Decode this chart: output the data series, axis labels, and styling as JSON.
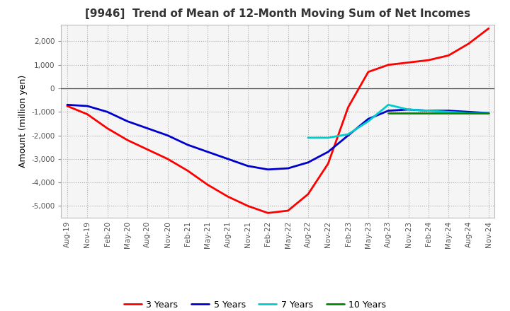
{
  "title": "[9946]  Trend of Mean of 12-Month Moving Sum of Net Incomes",
  "ylabel": "Amount (million yen)",
  "background_color": "#ffffff",
  "plot_bg_color": "#f5f5f5",
  "ylim": [
    -5500,
    2700
  ],
  "yticks": [
    -5000,
    -4000,
    -3000,
    -2000,
    -1000,
    0,
    1000,
    2000
  ],
  "legend": [
    "3 Years",
    "5 Years",
    "7 Years",
    "10 Years"
  ],
  "line_colors": [
    "#ff0000",
    "#0000cc",
    "#00cccc",
    "#008800"
  ],
  "x_labels": [
    "Aug-19",
    "Nov-19",
    "Feb-20",
    "May-20",
    "Aug-20",
    "Nov-20",
    "Feb-21",
    "May-21",
    "Aug-21",
    "Nov-21",
    "Feb-22",
    "May-22",
    "Aug-22",
    "Nov-22",
    "Feb-23",
    "May-23",
    "Aug-23",
    "Nov-23",
    "Feb-24",
    "May-24",
    "Aug-24",
    "Nov-24"
  ],
  "series_3y": [
    -750,
    -1100,
    -1700,
    -2200,
    -2600,
    -3000,
    -3500,
    -4100,
    -4600,
    -5000,
    -5300,
    -5200,
    -4500,
    -3200,
    -800,
    700,
    1000,
    1100,
    1200,
    1400,
    1900,
    2550
  ],
  "series_5y": [
    -700,
    -750,
    -1000,
    -1400,
    -1700,
    -2000,
    -2400,
    -2700,
    -3000,
    -3300,
    -3450,
    -3400,
    -3150,
    -2700,
    -2000,
    -1300,
    -950,
    -900,
    -950,
    -950,
    -1000,
    -1050
  ],
  "series_7y": [
    null,
    null,
    null,
    null,
    null,
    null,
    null,
    null,
    null,
    null,
    null,
    null,
    -2100,
    -2100,
    -1950,
    -1400,
    -700,
    -900,
    -950,
    -1000,
    -1050,
    -1050
  ],
  "series_10y": [
    null,
    null,
    null,
    null,
    null,
    null,
    null,
    null,
    null,
    null,
    null,
    null,
    null,
    null,
    null,
    null,
    -1050,
    -1050,
    -1050,
    -1050,
    -1050,
    -1050
  ]
}
